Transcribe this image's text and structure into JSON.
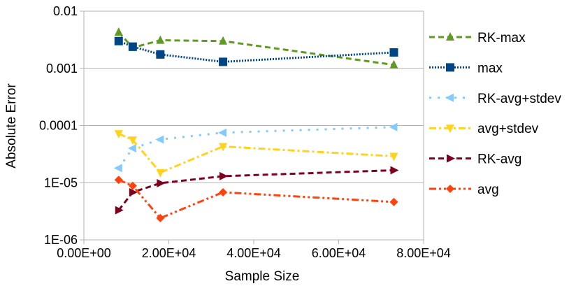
{
  "chart_data": {
    "type": "scatter",
    "xlabel": "Sample Size",
    "ylabel": "Absolute Error",
    "xlim": [
      0,
      80000
    ],
    "ylim": [
      1e-06,
      0.01
    ],
    "yscale": "log",
    "grid": true,
    "legend_position": "right",
    "x_tick_labels": [
      "0.00E+00",
      "2.00E+04",
      "4.00E+04",
      "6.00E+04",
      "8.00E+04"
    ],
    "y_tick_labels": [
      "0.01",
      "0.001",
      "0.0001",
      "1E-05",
      "1E-06"
    ],
    "series": [
      {
        "name": "RK-max",
        "color": "#5f9b22",
        "marker": "triangle-up",
        "dash": "dashed",
        "x": [
          8192,
          11500,
          18000,
          32768,
          73000
        ],
        "y": [
          0.0043,
          0.0023,
          0.0031,
          0.003,
          0.00115
        ]
      },
      {
        "name": "max",
        "color": "#004586",
        "marker": "square",
        "dash": "dotted",
        "x": [
          8192,
          11500,
          18000,
          32768,
          73000
        ],
        "y": [
          0.003,
          0.0024,
          0.00175,
          0.0013,
          0.0019
        ]
      },
      {
        "name": "RK-avg+stdev",
        "color": "#83caff",
        "marker": "triangle-left",
        "dash": "dash-dot-sparse",
        "x": [
          8192,
          11500,
          18000,
          32768,
          73000
        ],
        "y": [
          1.8e-05,
          4e-05,
          5.7e-05,
          7.5e-05,
          9.4e-05
        ]
      },
      {
        "name": "avg+stdev",
        "color": "#ffd320",
        "marker": "triangle-down",
        "dash": "dash-dot",
        "x": [
          8192,
          11500,
          18000,
          32768,
          73000
        ],
        "y": [
          7.2e-05,
          5.6e-05,
          1.5e-05,
          4.3e-05,
          2.9e-05
        ]
      },
      {
        "name": "RK-avg",
        "color": "#7e0021",
        "marker": "triangle-right",
        "dash": "dashed",
        "x": [
          8192,
          11500,
          18000,
          32768,
          73000
        ],
        "y": [
          3.3e-06,
          6.8e-06,
          9.8e-06,
          1.3e-05,
          1.65e-05
        ]
      },
      {
        "name": "avg",
        "color": "#ff420e",
        "marker": "diamond",
        "dash": "dash-dot-dot",
        "x": [
          8192,
          11500,
          18000,
          32768,
          73000
        ],
        "y": [
          1.12e-05,
          8.8e-06,
          2.4e-06,
          6.8e-06,
          4.6e-06
        ]
      }
    ]
  }
}
